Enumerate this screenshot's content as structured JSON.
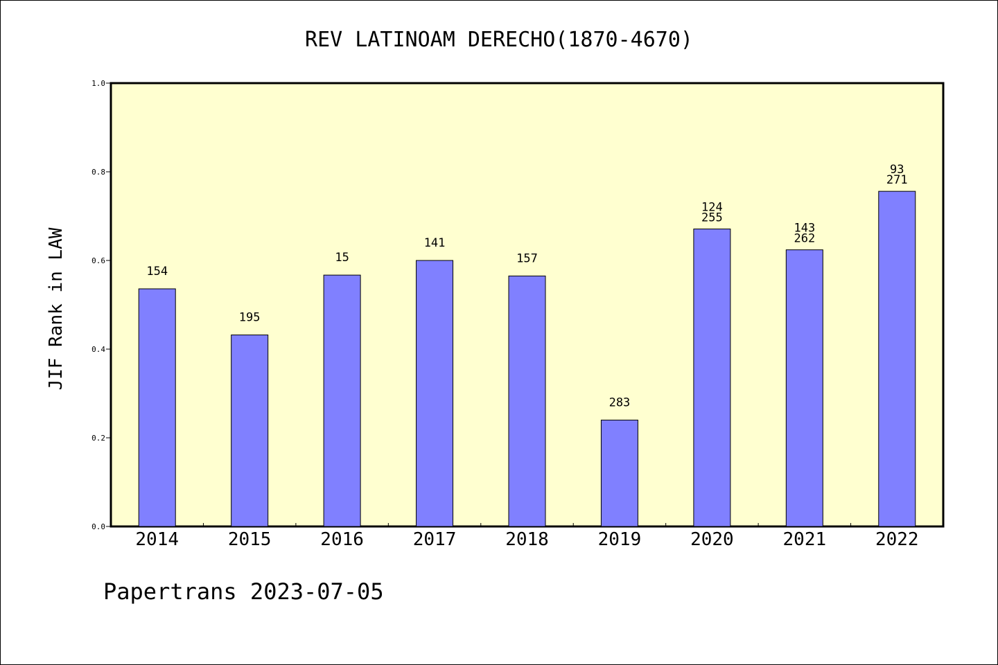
{
  "chart_data": {
    "type": "bar",
    "title": "REV LATINOAM DERECHO(1870-4670)",
    "ylabel": "JIF Rank in LAW",
    "xlabel": "",
    "categories": [
      "2014",
      "2015",
      "2016",
      "2017",
      "2018",
      "2019",
      "2020",
      "2021",
      "2022"
    ],
    "values": [
      0.536,
      0.432,
      0.567,
      0.6,
      0.565,
      0.24,
      0.671,
      0.624,
      0.756
    ],
    "bar_labels": [
      [
        "154"
      ],
      [
        "195"
      ],
      [
        "15"
      ],
      [
        "141"
      ],
      [
        "157"
      ],
      [
        "283"
      ],
      [
        "124",
        "255"
      ],
      [
        "143",
        "262"
      ],
      [
        "93",
        "271"
      ]
    ],
    "ylim": [
      0,
      1.0
    ],
    "yticks": [
      "0.0",
      "0.2",
      "0.4",
      "0.6",
      "0.8",
      "1.0"
    ],
    "grid": false,
    "colors": {
      "bar": "#8080ff",
      "plot_bg": "#ffffd0",
      "axis": "#000000"
    }
  },
  "footer": {
    "text": "Papertrans 2023-07-05"
  }
}
